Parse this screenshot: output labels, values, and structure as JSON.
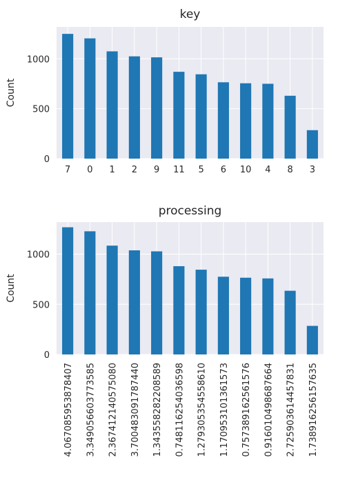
{
  "chart_data": [
    {
      "type": "bar",
      "title": "key",
      "xlabel": "",
      "ylabel": "Count",
      "categories": [
        "7",
        "0",
        "1",
        "2",
        "9",
        "11",
        "5",
        "6",
        "10",
        "4",
        "8",
        "3"
      ],
      "values": [
        1250,
        1205,
        1075,
        1025,
        1015,
        870,
        845,
        765,
        755,
        750,
        630,
        285
      ],
      "ylim": [
        0,
        1320
      ],
      "yticks": [
        "0",
        "500",
        "1000"
      ],
      "grid": true,
      "colors": {
        "bar": "#1f77b4",
        "background": "#eaeaf2",
        "grid": "#ffffff"
      }
    },
    {
      "type": "bar",
      "title": "processing",
      "xlabel": "",
      "ylabel": "Count",
      "categories": [
        "4.067085953878407",
        "3.349056603773585",
        "2.367412140575080",
        "3.700483091787440",
        "1.343558282208589",
        "0.748116254036598",
        "1.279305354558610",
        "1.170953101361573",
        "0.757389162561576",
        "0.916010498687664",
        "2.725903614457831",
        "1.738916256157635"
      ],
      "values": [
        1268,
        1228,
        1085,
        1038,
        1028,
        880,
        845,
        775,
        765,
        758,
        635,
        285
      ],
      "ylim": [
        0,
        1320
      ],
      "yticks": [
        "0",
        "500",
        "1000"
      ],
      "grid": true,
      "colors": {
        "bar": "#1f77b4",
        "background": "#eaeaf2",
        "grid": "#ffffff"
      }
    }
  ]
}
